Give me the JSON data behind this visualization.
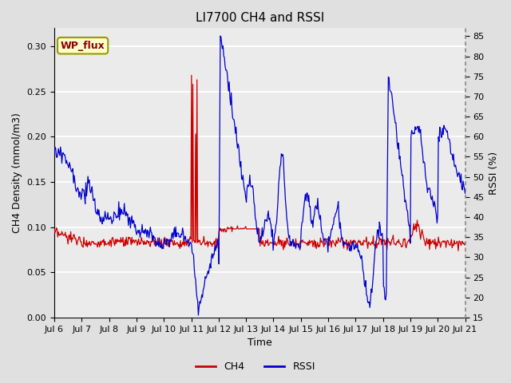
{
  "title": "LI7700 CH4 and RSSI",
  "xlabel": "Time",
  "ylabel_left": "CH4 Density (mmol/m3)",
  "ylabel_right": "RSSI (%)",
  "annotation": "WP_flux",
  "ylim_left": [
    0.0,
    0.32
  ],
  "ylim_right": [
    15,
    87
  ],
  "yticks_left": [
    0.0,
    0.05,
    0.1,
    0.15,
    0.2,
    0.25,
    0.3
  ],
  "yticks_right": [
    15,
    20,
    25,
    30,
    35,
    40,
    45,
    50,
    55,
    60,
    65,
    70,
    75,
    80,
    85
  ],
  "xtick_labels": [
    "Jul 6",
    "Jul 7",
    "Jul 8",
    "Jul 9",
    "Jul 10",
    "Jul 11",
    "Jul 12",
    "Jul 13",
    "Jul 14",
    "Jul 15",
    "Jul 16",
    "Jul 17",
    "Jul 18",
    "Jul 19",
    "Jul 20",
    "Jul 21"
  ],
  "ch4_color": "#cc0000",
  "rssi_color": "#0000cc",
  "fig_bg": "#e0e0e0",
  "plot_bg": "#ebebeb",
  "grid_color": "#ffffff",
  "legend_ch4": "CH4",
  "legend_rssi": "RSSI",
  "title_fontsize": 11,
  "label_fontsize": 9,
  "tick_fontsize": 8
}
